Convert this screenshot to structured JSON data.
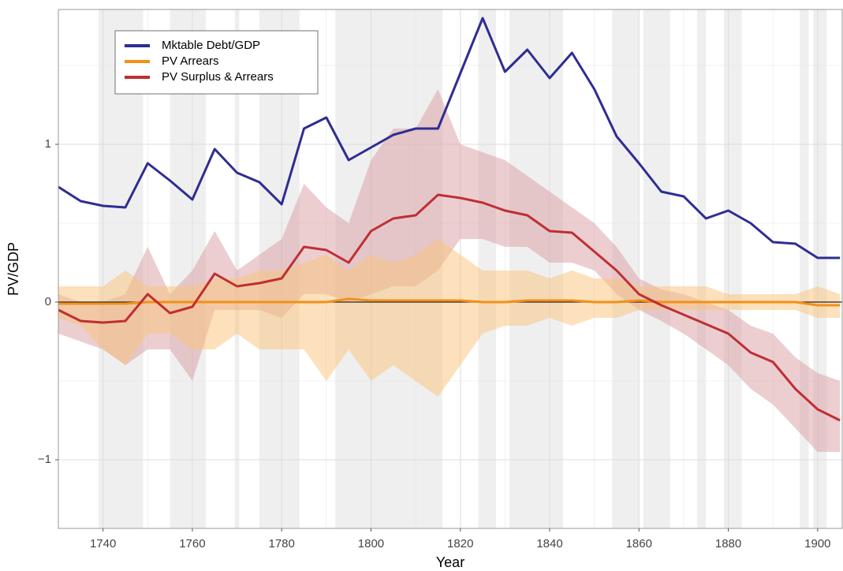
{
  "chart_data": {
    "type": "line",
    "xlabel": "Year",
    "ylabel": "PV/GDP",
    "xlim": [
      1730,
      1905.5
    ],
    "ylim": [
      -1.435,
      1.855
    ],
    "xticks": [
      1740,
      1760,
      1780,
      1800,
      1820,
      1840,
      1860,
      1880,
      1900
    ],
    "x_minor_grid": [
      1730,
      1750,
      1770,
      1790,
      1810,
      1830,
      1850,
      1870,
      1890
    ],
    "yticks": [
      {
        "value": -1,
        "label": "−1"
      },
      0,
      1
    ],
    "y_minor_grid": [
      -0.5,
      0.5,
      1.5
    ],
    "grid": true,
    "reference_line": 0,
    "legend": "upper left",
    "shaded_periods": [
      [
        1739,
        1749
      ],
      [
        1755,
        1763
      ],
      [
        1769.5,
        1770.5
      ],
      [
        1775,
        1784
      ],
      [
        1792,
        1816
      ],
      [
        1824,
        1828
      ],
      [
        1831,
        1843
      ],
      [
        1854,
        1860
      ],
      [
        1861,
        1867
      ],
      [
        1873,
        1875
      ],
      [
        1879,
        1883
      ],
      [
        1896,
        1898
      ],
      [
        1899,
        1902
      ]
    ],
    "x": [
      1730,
      1735,
      1740,
      1745,
      1750,
      1755,
      1760,
      1765,
      1770,
      1775,
      1780,
      1785,
      1790,
      1795,
      1800,
      1805,
      1810,
      1815,
      1820,
      1825,
      1830,
      1835,
      1840,
      1845,
      1850,
      1855,
      1860,
      1865,
      1870,
      1875,
      1880,
      1885,
      1890,
      1895,
      1900,
      1905
    ],
    "series": [
      {
        "name": "Mktable Debt/GDP",
        "color": "#2e2d92",
        "values": [
          0.73,
          0.64,
          0.61,
          0.6,
          0.88,
          0.77,
          0.65,
          0.97,
          0.82,
          0.76,
          0.62,
          1.1,
          1.17,
          0.9,
          0.98,
          1.06,
          1.1,
          1.1,
          1.45,
          1.8,
          1.46,
          1.6,
          1.42,
          1.58,
          1.35,
          1.05,
          0.88,
          0.7,
          0.67,
          0.53,
          0.58,
          0.5,
          0.38,
          0.37,
          0.28,
          0.28
        ]
      },
      {
        "name": "PV Arrears",
        "color": "#f39019",
        "band_color": "#f9c47a",
        "values": [
          -0.01,
          -0.01,
          -0.01,
          -0.01,
          0,
          0,
          0,
          0,
          0,
          0,
          0,
          0,
          0,
          0.02,
          0.01,
          0.01,
          0.01,
          0.01,
          0.01,
          0,
          0,
          0.01,
          0.01,
          0.01,
          0,
          0,
          0.01,
          0,
          0,
          0,
          0,
          0,
          0,
          0,
          -0.02,
          -0.02
        ],
        "upper": [
          0.1,
          0.1,
          0.1,
          0.2,
          0.1,
          0.1,
          0.1,
          0.15,
          0.15,
          0.2,
          0.2,
          0.25,
          0.3,
          0.2,
          0.3,
          0.25,
          0.3,
          0.4,
          0.3,
          0.2,
          0.2,
          0.2,
          0.15,
          0.2,
          0.15,
          0.15,
          0.1,
          0.1,
          0.1,
          0.1,
          0.05,
          0.05,
          0.05,
          0.05,
          0.1,
          0.05
        ],
        "lower": [
          -0.1,
          -0.15,
          -0.3,
          -0.4,
          -0.2,
          -0.2,
          -0.3,
          -0.3,
          -0.2,
          -0.3,
          -0.3,
          -0.3,
          -0.5,
          -0.3,
          -0.5,
          -0.4,
          -0.5,
          -0.6,
          -0.4,
          -0.2,
          -0.15,
          -0.15,
          -0.1,
          -0.15,
          -0.1,
          -0.1,
          -0.05,
          -0.05,
          -0.05,
          -0.05,
          -0.05,
          -0.05,
          -0.05,
          -0.05,
          -0.1,
          -0.1
        ]
      },
      {
        "name": "PV Surplus & Arrears",
        "color": "#bf2f32",
        "band_color": "#d99ea4",
        "values": [
          -0.05,
          -0.12,
          -0.13,
          -0.12,
          0.05,
          -0.07,
          -0.03,
          0.18,
          0.1,
          0.12,
          0.15,
          0.35,
          0.33,
          0.25,
          0.45,
          0.53,
          0.55,
          0.68,
          0.66,
          0.63,
          0.58,
          0.55,
          0.45,
          0.44,
          0.32,
          0.2,
          0.05,
          -0.02,
          -0.08,
          -0.14,
          -0.2,
          -0.32,
          -0.38,
          -0.55,
          -0.68,
          -0.75
        ],
        "upper": [
          0.05,
          0.0,
          0.0,
          0.05,
          0.35,
          0.05,
          0.2,
          0.45,
          0.2,
          0.3,
          0.4,
          0.75,
          0.6,
          0.5,
          0.9,
          1.1,
          1.1,
          1.35,
          1.0,
          0.95,
          0.9,
          0.8,
          0.7,
          0.6,
          0.5,
          0.35,
          0.15,
          0.08,
          0.05,
          0.0,
          -0.05,
          -0.15,
          -0.2,
          -0.35,
          -0.45,
          -0.5
        ],
        "lower": [
          -0.2,
          -0.25,
          -0.3,
          -0.4,
          -0.3,
          -0.3,
          -0.5,
          -0.05,
          -0.05,
          -0.05,
          -0.1,
          0.05,
          0.05,
          0.0,
          0.05,
          0.1,
          0.1,
          0.2,
          0.4,
          0.4,
          0.35,
          0.35,
          0.25,
          0.25,
          0.2,
          0.05,
          -0.05,
          -0.12,
          -0.2,
          -0.3,
          -0.4,
          -0.55,
          -0.65,
          -0.8,
          -0.95,
          -0.95
        ]
      }
    ]
  }
}
